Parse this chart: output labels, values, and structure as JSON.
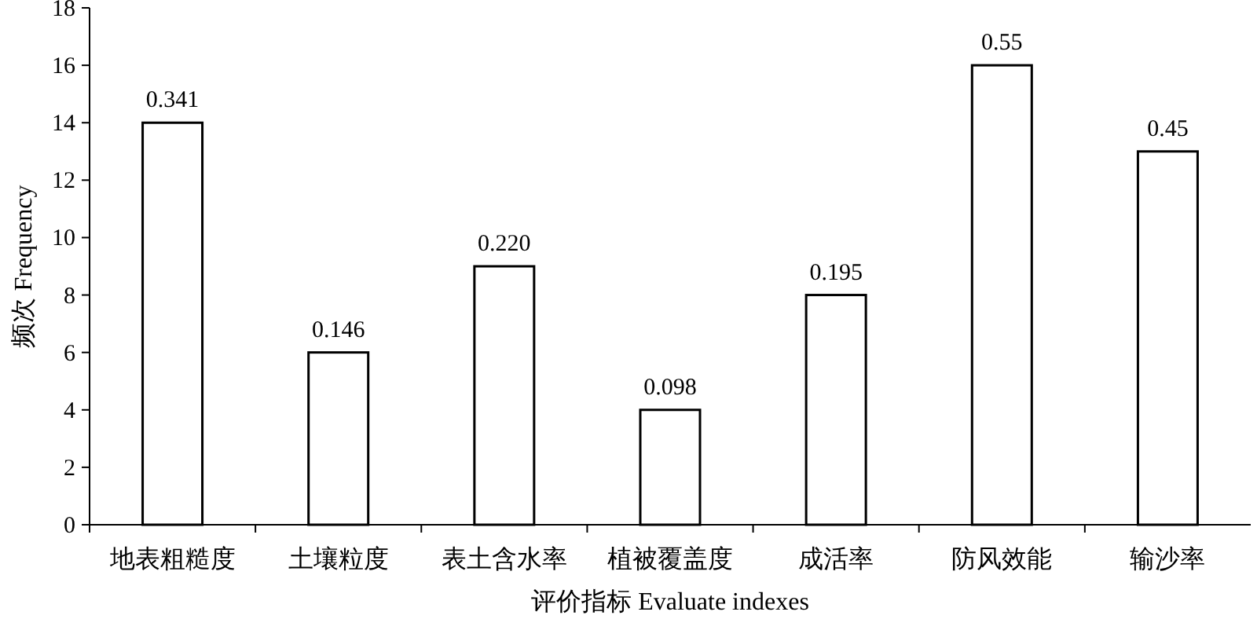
{
  "chart_data": {
    "type": "bar",
    "xlabel": "评价指标 Evaluate indexes",
    "ylabel": "频次 Frequency",
    "categories": [
      "地表粗糙度",
      "土壤粒度",
      "表土含水率",
      "植被覆盖度",
      "成活率",
      "防风效能",
      "输沙率"
    ],
    "values": [
      14,
      6,
      9,
      4,
      8,
      16,
      13
    ],
    "color": "#ffffff",
    "ylim": [
      0,
      18
    ],
    "yticks": [
      0,
      2,
      4,
      6,
      8,
      10,
      12,
      14,
      16,
      18
    ],
    "grid": false,
    "annotations": [
      {
        "text": "0.341",
        "x": "地表粗糙度",
        "y": 14
      },
      {
        "text": "0.146",
        "x": "土壤粒度",
        "y": 6
      },
      {
        "text": "0.220",
        "x": "表土含水率",
        "y": 9
      },
      {
        "text": "0.098",
        "x": "植被覆盖度",
        "y": 4
      },
      {
        "text": "0.195",
        "x": "成活率",
        "y": 8
      },
      {
        "text": "0.55",
        "x": "防风效能",
        "y": 16
      },
      {
        "text": "0.45",
        "x": "输沙率",
        "y": 13
      }
    ]
  }
}
